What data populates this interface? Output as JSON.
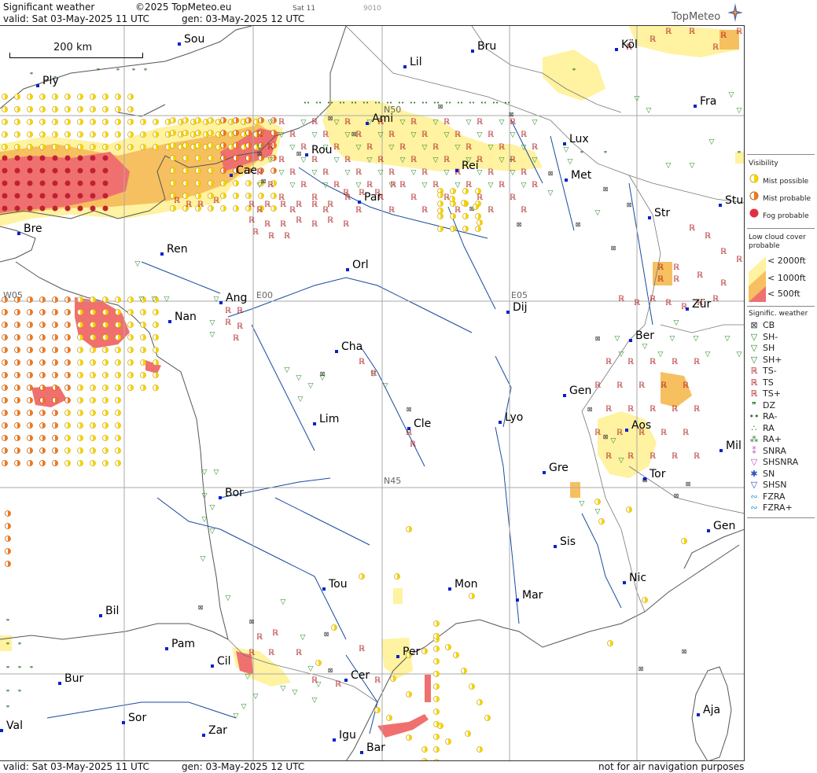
{
  "header": {
    "title": "Significant weather",
    "copyright": "©2025 TopMeteo.eu",
    "sat": "Sat 11",
    "code": "9010",
    "valid": "valid:  Sat  03-May-2025  11 UTC",
    "gen": "gen: 03-May-2025 12 UTC",
    "logo": "TopMeteo"
  },
  "footer": {
    "valid": "valid:  Sat  03-May-2025  11 UTC",
    "gen": "gen: 03-May-2025 12 UTC",
    "note": "not for air navigation purposes"
  },
  "scale": {
    "label": "200 km"
  },
  "grid_labels": [
    "N50",
    "W05",
    "E00",
    "E05",
    "N45"
  ],
  "cities": [
    {
      "name": "Sou"
    },
    {
      "name": "Ply"
    },
    {
      "name": "Lil"
    },
    {
      "name": "Bru"
    },
    {
      "name": "Köl"
    },
    {
      "name": "Fra"
    },
    {
      "name": "Ami"
    },
    {
      "name": "Lux"
    },
    {
      "name": "Rou"
    },
    {
      "name": "Cae"
    },
    {
      "name": "Rei"
    },
    {
      "name": "Met"
    },
    {
      "name": "Par"
    },
    {
      "name": "Stu"
    },
    {
      "name": "Str"
    },
    {
      "name": "Bre"
    },
    {
      "name": "Ren"
    },
    {
      "name": "Orl"
    },
    {
      "name": "Ang"
    },
    {
      "name": "Nan"
    },
    {
      "name": "Dij"
    },
    {
      "name": "Zür"
    },
    {
      "name": "Cha"
    },
    {
      "name": "Ber"
    },
    {
      "name": "Gen"
    },
    {
      "name": "Lim"
    },
    {
      "name": "Cle"
    },
    {
      "name": "Lyo"
    },
    {
      "name": "Aos"
    },
    {
      "name": "Mil"
    },
    {
      "name": "Gre"
    },
    {
      "name": "Tor"
    },
    {
      "name": "Bor"
    },
    {
      "name": "Sis"
    },
    {
      "name": "Gen"
    },
    {
      "name": "Tou"
    },
    {
      "name": "Mon"
    },
    {
      "name": "Nic"
    },
    {
      "name": "Mar"
    },
    {
      "name": "Bil"
    },
    {
      "name": "Pam"
    },
    {
      "name": "Per"
    },
    {
      "name": "Cil"
    },
    {
      "name": "Cer"
    },
    {
      "name": "Bur"
    },
    {
      "name": "Sor"
    },
    {
      "name": "Aja"
    },
    {
      "name": "Val"
    },
    {
      "name": "Zar"
    },
    {
      "name": "Igu"
    },
    {
      "name": "Bar"
    }
  ],
  "legend": {
    "visibility": {
      "title": "Visibility",
      "items": [
        {
          "label": "Mist possible",
          "color": "#f5d400"
        },
        {
          "label": "Mist probable",
          "color": "#f07820"
        },
        {
          "label": "Fog probable",
          "color": "#e03040"
        }
      ]
    },
    "lowcloud": {
      "title1": "Low cloud cover",
      "title2": "probable",
      "items": [
        {
          "label": "< 2000ft",
          "color": "#fff2a0"
        },
        {
          "label": "< 1000ft",
          "color": "#f6c060"
        },
        {
          "label": "<  500ft",
          "color": "#f07070"
        }
      ]
    },
    "signific": {
      "title": "Signific. weather",
      "items": [
        {
          "label": "CB",
          "icon": "cb-icon"
        },
        {
          "label": "SH-",
          "icon": "shower-light-icon"
        },
        {
          "label": "SH",
          "icon": "shower-icon"
        },
        {
          "label": "SH+",
          "icon": "shower-heavy-icon"
        },
        {
          "label": "TS-",
          "icon": "thunderstorm-light-icon"
        },
        {
          "label": "TS",
          "icon": "thunderstorm-icon"
        },
        {
          "label": "TS+",
          "icon": "thunderstorm-heavy-icon"
        },
        {
          "label": "DZ",
          "icon": "drizzle-icon"
        },
        {
          "label": "RA-",
          "icon": "rain-light-icon"
        },
        {
          "label": "RA",
          "icon": "rain-icon"
        },
        {
          "label": "RA+",
          "icon": "rain-heavy-icon"
        },
        {
          "label": "SNRA",
          "icon": "snow-rain-icon"
        },
        {
          "label": "SHSNRA",
          "icon": "snow-rain-shower-icon"
        },
        {
          "label": "SN",
          "icon": "snow-icon"
        },
        {
          "label": "SHSN",
          "icon": "snow-shower-icon"
        },
        {
          "label": "FZRA",
          "icon": "freezing-rain-icon"
        },
        {
          "label": "FZRA+",
          "icon": "freezing-rain-heavy-icon"
        }
      ]
    }
  }
}
